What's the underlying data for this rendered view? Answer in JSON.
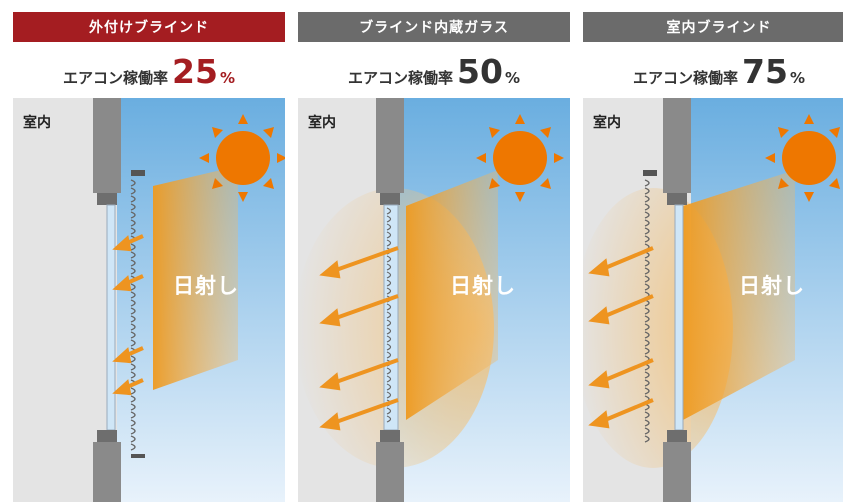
{
  "panels": [
    {
      "id": "exterior",
      "header": "外付けブラインド",
      "header_color": "#a41d21",
      "rate_label": "エアコン稼働率",
      "rate_value": "25",
      "rate_unit": "%",
      "rate_color": "#a41d21",
      "room_label": "室内",
      "sun_label": "日射し"
    },
    {
      "id": "internal",
      "header": "ブラインド内蔵ガラス",
      "header_color": "#6b6b6b",
      "rate_label": "エアコン稼働率",
      "rate_value": "50",
      "rate_unit": "%",
      "rate_color": "#333333",
      "room_label": "室内",
      "sun_label": "日射し"
    },
    {
      "id": "indoor",
      "header": "室内ブラインド",
      "header_color": "#6b6b6b",
      "rate_label": "エアコン稼働率",
      "rate_value": "75",
      "rate_unit": "%",
      "rate_color": "#333333",
      "room_label": "室内",
      "sun_label": "日射し"
    }
  ],
  "colors": {
    "sky": "#7cb8e4",
    "sun": "#ee7700",
    "beam": "#f0a030",
    "wall": "#e4e4e4",
    "frame": "#8a8a8a"
  }
}
